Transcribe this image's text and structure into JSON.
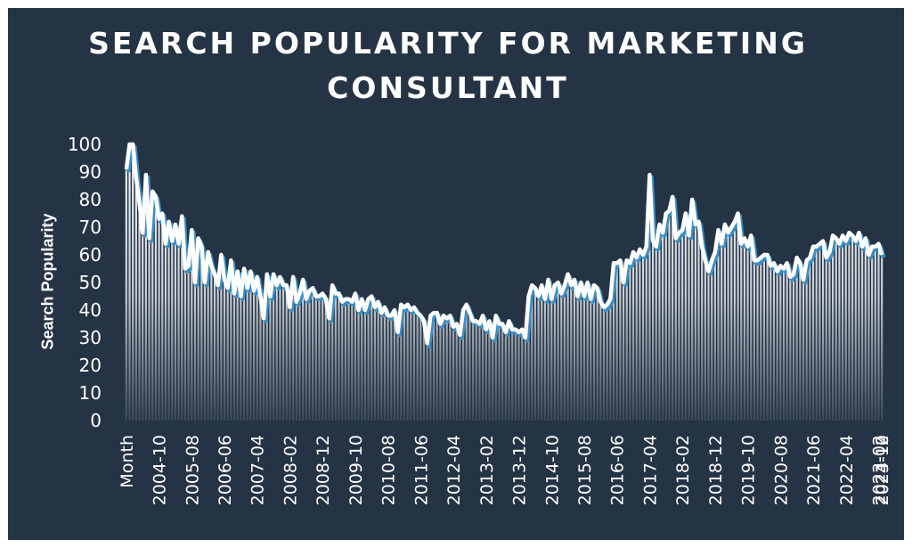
{
  "chart_data": {
    "type": "bar",
    "title": "SEARCH POPULARITY FOR MARKETING CONSULTANT",
    "xlabel": "",
    "ylabel": "Search Popularity",
    "ylim": [
      0,
      100
    ],
    "yticks": [
      0,
      10,
      20,
      30,
      40,
      50,
      60,
      70,
      80,
      90,
      100
    ],
    "x_tick_labels": [
      "Month",
      "2004-10",
      "2005-08",
      "2006-06",
      "2007-04",
      "2008-02",
      "2008-12",
      "2009-10",
      "2010-08",
      "2011-06",
      "2012-04",
      "2013-02",
      "2013-12",
      "2014-10",
      "2015-08",
      "2016-06",
      "2017-04",
      "2018-02",
      "2018-12",
      "2019-10",
      "2020-08",
      "2021-06",
      "2022-04",
      "2023-02",
      "2023-12",
      "2024-10"
    ],
    "start_month": "2004-01",
    "series": [
      {
        "values": [
          91,
          100,
          100,
          88,
          79,
          68,
          89,
          66,
          83,
          81,
          73,
          75,
          64,
          72,
          65,
          71,
          64,
          74,
          55,
          56,
          69,
          50,
          66,
          63,
          50,
          61,
          56,
          53,
          49,
          60,
          51,
          48,
          58,
          46,
          54,
          45,
          55,
          48,
          54,
          47,
          52,
          45,
          37,
          53,
          45,
          53,
          49,
          52,
          49,
          49,
          41,
          52,
          43,
          46,
          51,
          44,
          47,
          48,
          45,
          45,
          46,
          44,
          37,
          49,
          46,
          46,
          43,
          44,
          44,
          43,
          46,
          40,
          44,
          40,
          44,
          45,
          41,
          43,
          39,
          41,
          38,
          38,
          40,
          32,
          42,
          41,
          42,
          40,
          41,
          39,
          38,
          36,
          28,
          38,
          39,
          39,
          35,
          38,
          37,
          38,
          34,
          35,
          31,
          40,
          42,
          39,
          36,
          36,
          35,
          38,
          33,
          36,
          30,
          38,
          35,
          35,
          32,
          36,
          33,
          33,
          32,
          33,
          30,
          45,
          49,
          48,
          45,
          49,
          44,
          51,
          44,
          49,
          50,
          46,
          49,
          53,
          49,
          51,
          45,
          50,
          45,
          50,
          44,
          49,
          48,
          43,
          41,
          42,
          44,
          57,
          57,
          58,
          50,
          58,
          57,
          61,
          59,
          62,
          60,
          63,
          89,
          65,
          63,
          71,
          68,
          75,
          76,
          81,
          66,
          68,
          69,
          75,
          67,
          80,
          71,
          72,
          63,
          58,
          54,
          58,
          61,
          69,
          64,
          71,
          68,
          70,
          72,
          75,
          64,
          66,
          63,
          67,
          58,
          58,
          59,
          60,
          60,
          56,
          57,
          54,
          56,
          55,
          57,
          52,
          53,
          59,
          57,
          51,
          58,
          59,
          63,
          63,
          64,
          65,
          59,
          61,
          67,
          66,
          64,
          67,
          65,
          68,
          67,
          65,
          68,
          63,
          66,
          60,
          63,
          63,
          64,
          60
        ]
      }
    ]
  }
}
